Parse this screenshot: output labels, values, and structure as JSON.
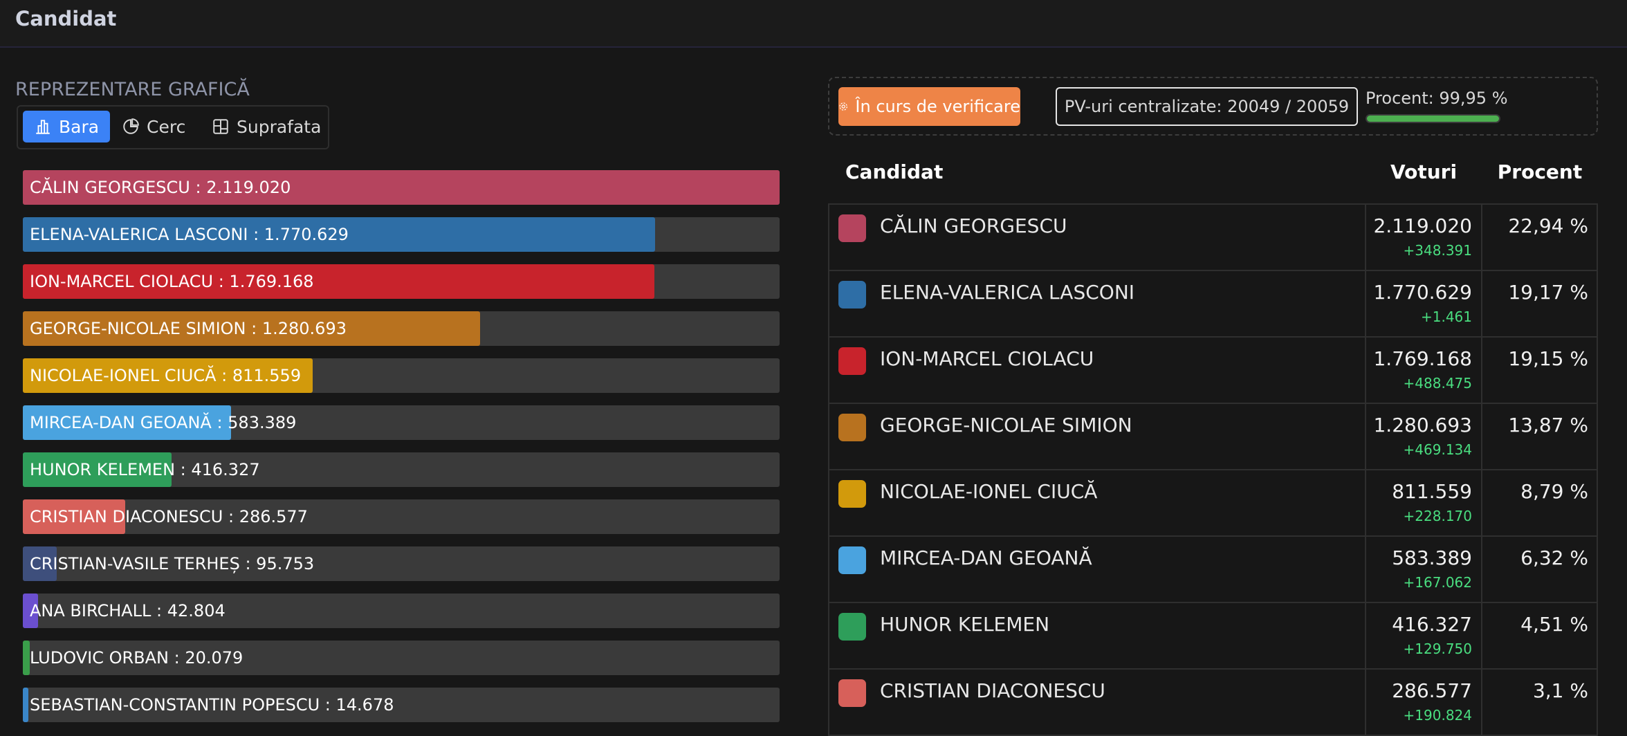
{
  "header": {
    "title": "Candidat"
  },
  "view_tabs": {
    "items": [
      "Bara",
      "Cerc",
      "Suprafata"
    ],
    "active": 0
  },
  "chart_data": {
    "type": "bar",
    "orientation": "horizontal",
    "title": "REPREZENTARE GRAFICĂ",
    "xlim": [
      0,
      2119020
    ],
    "bars": [
      {
        "label": "CĂLIN GEORGESCU : 2.119.020",
        "value": 2119020,
        "color": "#b5445e"
      },
      {
        "label": "ELENA-VALERICA LASCONI : 1.770.629",
        "value": 1770629,
        "color": "#2e6ea6"
      },
      {
        "label": "ION-MARCEL CIOLACU : 1.769.168",
        "value": 1769168,
        "color": "#c8232c"
      },
      {
        "label": "GEORGE-NICOLAE SIMION : 1.280.693",
        "value": 1280693,
        "color": "#b8721f"
      },
      {
        "label": "NICOLAE-IONEL CIUCĂ : 811.559",
        "value": 811559,
        "color": "#d29a0c"
      },
      {
        "label": "MIRCEA-DAN GEOANĂ : 583.389",
        "value": 583389,
        "color": "#4aa3df"
      },
      {
        "label": "HUNOR KELEMEN : 416.327",
        "value": 416327,
        "color": "#2e9e5a"
      },
      {
        "label": "CRISTIAN DIACONESCU : 286.577",
        "value": 286577,
        "color": "#d7605a"
      },
      {
        "label": "CRISTIAN-VASILE TERHEȘ : 95.753",
        "value": 95753,
        "color": "#3e4f7c"
      },
      {
        "label": "ANA BIRCHALL : 42.804",
        "value": 42804,
        "color": "#6b4fcf"
      },
      {
        "label": "LUDOVIC ORBAN : 20.079",
        "value": 20079,
        "color": "#3a9e4a"
      },
      {
        "label": "SEBASTIAN-CONSTANTIN POPESCU : 14.678",
        "value": 14678,
        "color": "#3a86c8"
      }
    ]
  },
  "status": {
    "button": "În curs de verificare",
    "pv": "PV-uri centralizate: 20049 / 20059",
    "progress_label": "Procent: 99,95 %",
    "progress": 99.95
  },
  "table": {
    "columns": [
      "Candidat",
      "Voturi",
      "Procent"
    ],
    "rows": [
      {
        "name": "CĂLIN GEORGESCU",
        "color": "#b5445e",
        "votes": "2.119.020",
        "delta": "+348.391",
        "percent": "22,94 %"
      },
      {
        "name": "ELENA-VALERICA LASCONI",
        "color": "#2e6ea6",
        "votes": "1.770.629",
        "delta": "+1.461",
        "percent": "19,17 %"
      },
      {
        "name": "ION-MARCEL CIOLACU",
        "color": "#c8232c",
        "votes": "1.769.168",
        "delta": "+488.475",
        "percent": "19,15 %"
      },
      {
        "name": "GEORGE-NICOLAE SIMION",
        "color": "#b8721f",
        "votes": "1.280.693",
        "delta": "+469.134",
        "percent": "13,87 %"
      },
      {
        "name": "NICOLAE-IONEL CIUCĂ",
        "color": "#d29a0c",
        "votes": "811.559",
        "delta": "+228.170",
        "percent": "8,79 %"
      },
      {
        "name": "MIRCEA-DAN GEOANĂ",
        "color": "#4aa3df",
        "votes": "583.389",
        "delta": "+167.062",
        "percent": "6,32 %"
      },
      {
        "name": "HUNOR KELEMEN",
        "color": "#2e9e5a",
        "votes": "416.327",
        "delta": "+129.750",
        "percent": "4,51 %"
      },
      {
        "name": "CRISTIAN DIACONESCU",
        "color": "#d7605a",
        "votes": "286.577",
        "delta": "+190.824",
        "percent": "3,1 %"
      }
    ]
  }
}
